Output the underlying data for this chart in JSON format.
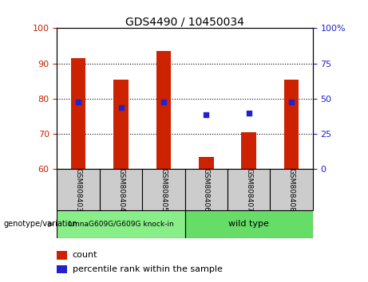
{
  "title": "GDS4490 / 10450034",
  "samples": [
    "GSM808403",
    "GSM808404",
    "GSM808405",
    "GSM808406",
    "GSM808407",
    "GSM808408"
  ],
  "bar_heights": [
    91.5,
    85.5,
    93.5,
    63.5,
    70.5,
    85.5
  ],
  "bar_bottom": 60,
  "percentile_y_left": [
    79.0,
    77.5,
    79.0,
    75.5,
    76.0,
    79.0
  ],
  "ylim_left": [
    60,
    100
  ],
  "ylim_right": [
    0,
    100
  ],
  "yticks_left": [
    60,
    70,
    80,
    90,
    100
  ],
  "yticks_right": [
    0,
    25,
    50,
    75,
    100
  ],
  "ytick_labels_right": [
    "0",
    "25",
    "50",
    "75",
    "100%"
  ],
  "bar_color": "#cc2200",
  "dot_color": "#2222cc",
  "left_tick_color": "#cc2200",
  "right_tick_color": "#2222cc",
  "group1_label": "LmnaG609G/G609G knock-in",
  "group2_label": "wild type",
  "group1_color": "#88ee88",
  "group2_color": "#66dd66",
  "legend_count_label": "count",
  "legend_pct_label": "percentile rank within the sample",
  "genotype_label": "genotype/variation",
  "bar_width": 0.35,
  "tick_label_bg": "#cccccc",
  "fig_width": 4.61,
  "fig_height": 3.54,
  "dpi": 100
}
